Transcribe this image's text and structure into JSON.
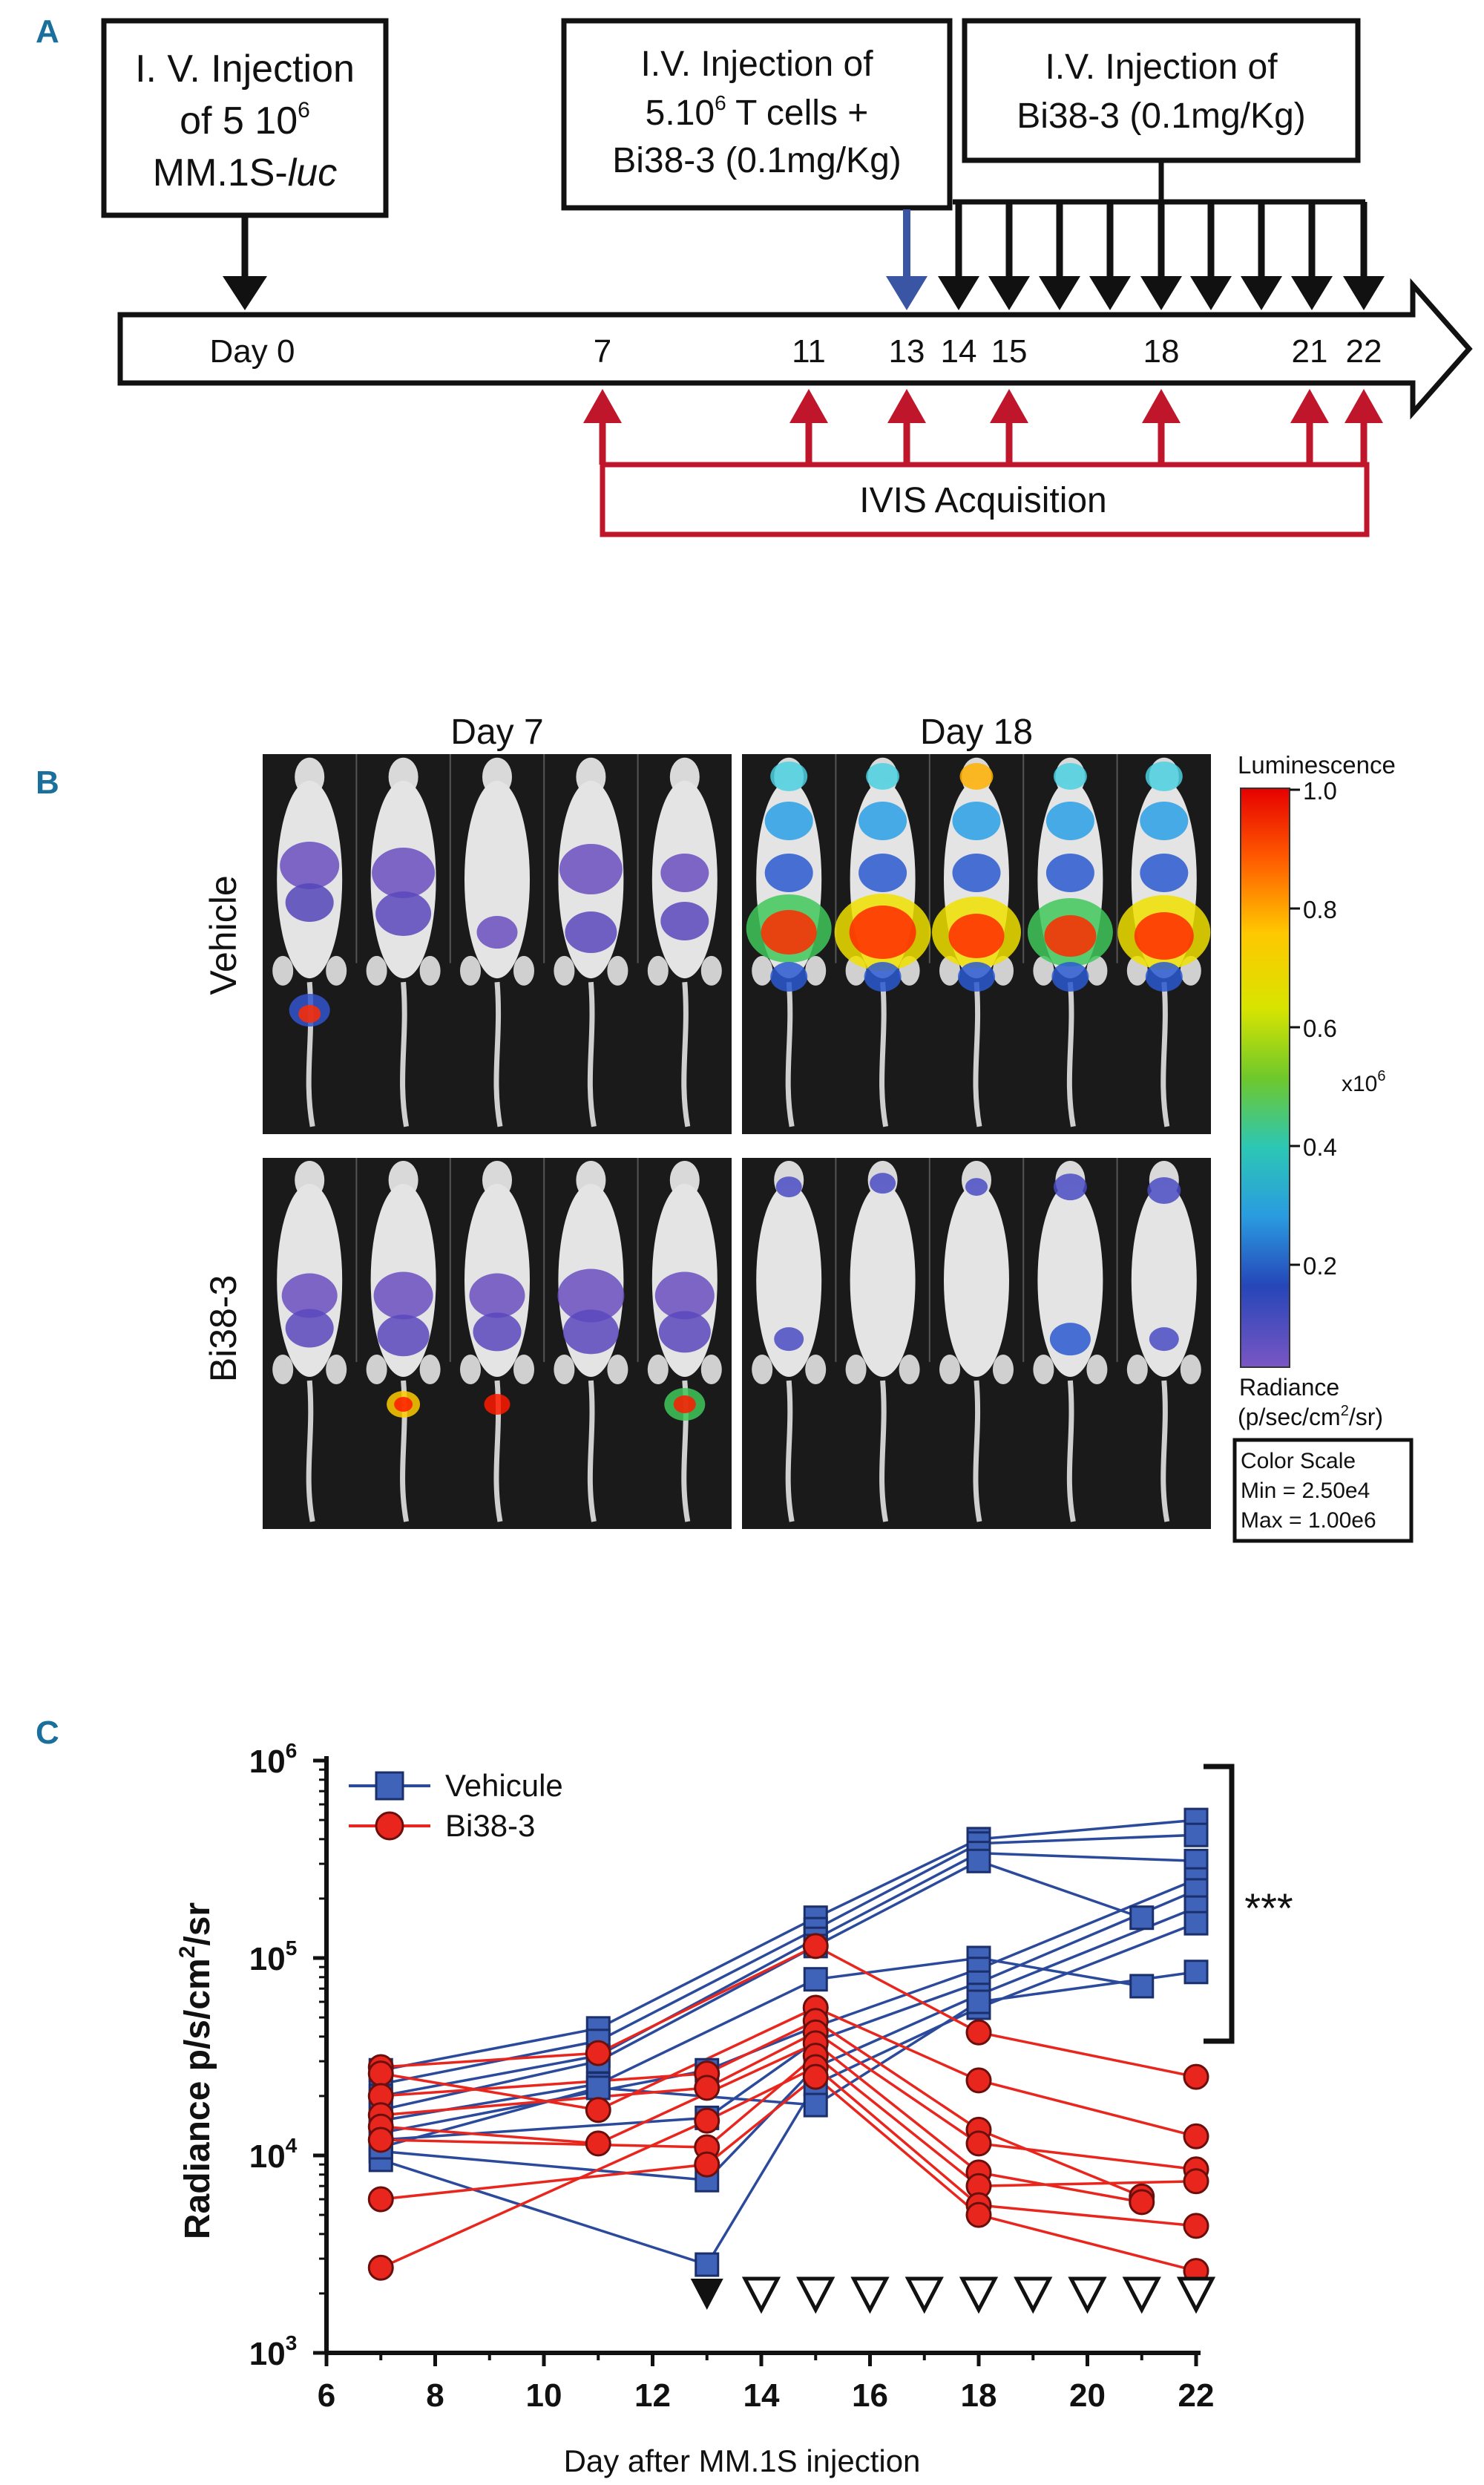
{
  "panel_a": {
    "letter": "A",
    "box1": {
      "line1": "I. V. Injection",
      "line2": "of 5 10",
      "line2_sup": "6",
      "line3_prefix": "MM.1S-",
      "line3_italic": "luc"
    },
    "box2": {
      "line1": "I.V. Injection of",
      "line2_prefix": "5.10",
      "line2_sup": "6",
      "line2_suffix": " T cells +",
      "line3": "Bi38-3 (0.1mg/Kg)"
    },
    "box3": {
      "line1": "I.V. Injection of",
      "line2": "Bi38-3 (0.1mg/Kg)"
    },
    "day_labels": [
      "Day 0",
      "7",
      "11",
      "13",
      "14",
      "15",
      "18",
      "21",
      "22"
    ],
    "ivis_label": "IVIS Acquisition",
    "colors": {
      "black_arrow": "#111111",
      "blue_arrow": "#3a55a4",
      "red_arrow": "#c0162b"
    }
  },
  "panel_b": {
    "letter": "B",
    "col_day7": "Day 7",
    "col_day18": "Day 18",
    "row_vehicle": "Vehicle",
    "row_bi38": "Bi38-3",
    "colorbar": {
      "title": "Luminescence",
      "ticks": [
        "1.0",
        "0.8",
        "0.6",
        "0.4",
        "0.2"
      ],
      "multiplier": "x10",
      "multiplier_sup": "6",
      "radiance_line1": "Radiance",
      "radiance_line2_prefix": "(p/sec/cm",
      "radiance_line2_sup": "2",
      "radiance_line2_suffix": "/sr)",
      "scale_title": "Color Scale",
      "scale_min": "Min = 2.50e4",
      "scale_max": "Max = 1.00e6"
    }
  },
  "panel_c": {
    "letter": "C",
    "significance": "***",
    "chart_data": {
      "type": "line",
      "title": "",
      "xlabel": "Day after MM.1S injection",
      "ylabel_prefix": "Radiance p/s/cm",
      "ylabel_sup": "2",
      "ylabel_suffix": "/sr",
      "xlim": [
        6,
        22
      ],
      "ylim": [
        1000,
        1000000
      ],
      "yscale": "log",
      "x_ticks": [
        6,
        8,
        10,
        12,
        14,
        16,
        18,
        20,
        22
      ],
      "y_tick_exponents": [
        3,
        4,
        5,
        6
      ],
      "y_tick_base": "10",
      "legend": [
        "Vehicule",
        "Bi38-3"
      ],
      "series_colors": {
        "Vehicule": "#2b4a9c",
        "Bi38-3": "#e8261d"
      },
      "treatment_markers": {
        "filled_day": [
          13
        ],
        "open_days": [
          14,
          15,
          16,
          17,
          18,
          19,
          20,
          21,
          22
        ]
      },
      "series": [
        {
          "name": "Vehicule",
          "group": "vehicule",
          "x": [
            7,
            11,
            15,
            18,
            22
          ],
          "y": [
            27000,
            44000,
            160000,
            400000,
            500000
          ]
        },
        {
          "name": "Vehicule",
          "group": "vehicule",
          "x": [
            7,
            11,
            15,
            18,
            22
          ],
          "y": [
            23000,
            38000,
            140000,
            380000,
            420000
          ]
        },
        {
          "name": "Vehicule",
          "group": "vehicule",
          "x": [
            7,
            11,
            15,
            18,
            22
          ],
          "y": [
            20000,
            32000,
            125000,
            340000,
            310000
          ]
        },
        {
          "name": "Vehicule",
          "group": "vehicule",
          "x": [
            7,
            11,
            15,
            18,
            21
          ],
          "y": [
            17000,
            30000,
            115000,
            310000,
            160000
          ]
        },
        {
          "name": "Vehicule",
          "group": "vehicule",
          "x": [
            7,
            11,
            15,
            18,
            21
          ],
          "y": [
            15000,
            23000,
            78000,
            100000,
            72000
          ]
        },
        {
          "name": "Vehicule",
          "group": "vehicule",
          "x": [
            7,
            13,
            15,
            18,
            22
          ],
          "y": [
            13000,
            27000,
            45000,
            88000,
            250000
          ]
        },
        {
          "name": "Vehicule",
          "group": "vehicule",
          "x": [
            7,
            13,
            15,
            18,
            22
          ],
          "y": [
            12000,
            15500,
            38000,
            75000,
            220000
          ]
        },
        {
          "name": "Vehicule",
          "group": "vehicule",
          "x": [
            7,
            13,
            15,
            18,
            22
          ],
          "y": [
            10500,
            7500,
            28000,
            65000,
            180000
          ]
        },
        {
          "name": "Vehicule",
          "group": "vehicule",
          "x": [
            7,
            13,
            15,
            18,
            22
          ],
          "y": [
            9500,
            2800,
            23000,
            56000,
            150000
          ]
        },
        {
          "name": "Vehicule",
          "group": "vehicule",
          "x": [
            7,
            11,
            15,
            18,
            22
          ],
          "y": [
            11000,
            22000,
            18000,
            60000,
            85000
          ]
        },
        {
          "name": "Bi38-3",
          "group": "bi38",
          "x": [
            7,
            11,
            15,
            18,
            22
          ],
          "y": [
            28000,
            33000,
            115000,
            42000,
            25000
          ]
        },
        {
          "name": "Bi38-3",
          "group": "bi38",
          "x": [
            7,
            11,
            15,
            18,
            22
          ],
          "y": [
            26000,
            17000,
            56000,
            24000,
            12500
          ]
        },
        {
          "name": "Bi38-3",
          "group": "bi38",
          "x": [
            7,
            13,
            15,
            18,
            21
          ],
          "y": [
            20000,
            26000,
            48000,
            13500,
            6200
          ]
        },
        {
          "name": "Bi38-3",
          "group": "bi38",
          "x": [
            7,
            13,
            15,
            18,
            22
          ],
          "y": [
            16000,
            22000,
            42000,
            11500,
            8500
          ]
        },
        {
          "name": "Bi38-3",
          "group": "bi38",
          "x": [
            7,
            11,
            15,
            18,
            21
          ],
          "y": [
            14000,
            11500,
            37000,
            8200,
            5800
          ]
        },
        {
          "name": "Bi38-3",
          "group": "bi38",
          "x": [
            7,
            13,
            15,
            18,
            22
          ],
          "y": [
            12000,
            11000,
            32000,
            7000,
            7400
          ]
        },
        {
          "name": "Bi38-3",
          "group": "bi38",
          "x": [
            7,
            13,
            15,
            18,
            22
          ],
          "y": [
            2700,
            15000,
            28000,
            5600,
            4400
          ]
        },
        {
          "name": "Bi38-3",
          "group": "bi38",
          "x": [
            7,
            13,
            15,
            18,
            22
          ],
          "y": [
            6000,
            9000,
            25000,
            5000,
            2600
          ]
        }
      ]
    }
  }
}
